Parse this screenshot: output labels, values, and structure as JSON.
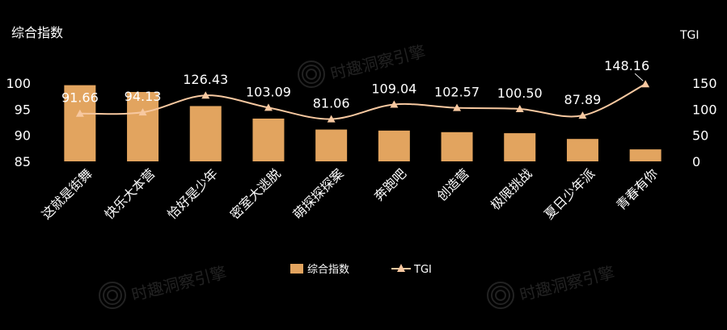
{
  "chart_data": {
    "type": "bar",
    "y_left_label": "综合指数",
    "y_right_label": "TGI",
    "categories": [
      "这就是街舞",
      "快乐大本营",
      "恰好是少年",
      "密室大逃脱",
      "萌探探探案",
      "奔跑吧",
      "创造营",
      "极限挑战",
      "夏日少年派",
      "青春有你"
    ],
    "series": [
      {
        "name": "综合指数",
        "type": "bar",
        "axis": "left",
        "values": [
          99.6,
          98.3,
          95.6,
          93.2,
          91.1,
          90.9,
          90.6,
          90.4,
          89.3,
          87.3
        ]
      },
      {
        "name": "TGI",
        "type": "line",
        "axis": "right",
        "values": [
          91.66,
          94.13,
          126.43,
          103.09,
          81.06,
          109.04,
          102.57,
          100.5,
          87.89,
          148.16
        ],
        "labels": [
          "91.66",
          "94.13",
          "126.43",
          "103.09",
          "81.06",
          "109.04",
          "102.57",
          "100.50",
          "87.89",
          "148.16"
        ]
      }
    ],
    "y_left_ticks": [
      "85",
      "90",
      "95",
      "100"
    ],
    "y_left_range": [
      85,
      100
    ],
    "y_right_ticks": [
      "0",
      "50",
      "100",
      "150"
    ],
    "y_right_range": [
      0,
      150
    ],
    "legend_position": "bottom-center",
    "grid": false,
    "colors": {
      "bar": "#E2A45F",
      "line": "#F7C8A0",
      "text": "#FFFFFF",
      "background": "#000000"
    }
  },
  "watermark": {
    "text": "时趣洞察引擎"
  }
}
